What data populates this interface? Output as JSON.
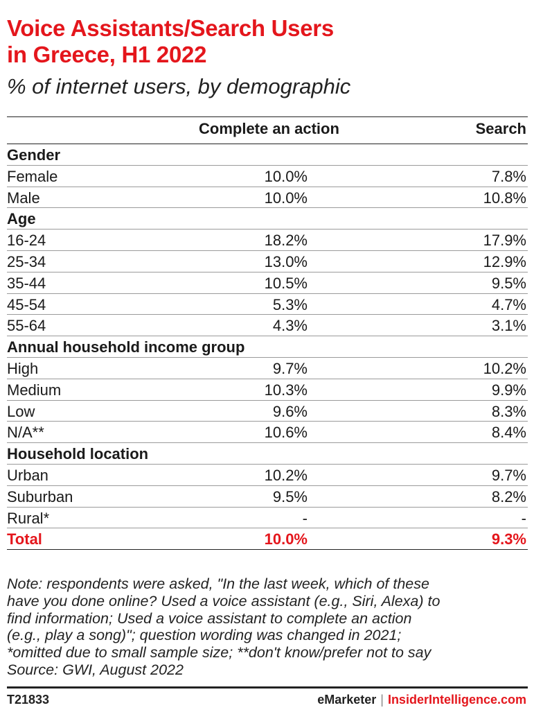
{
  "title_lines": [
    "Voice Assistants/Search Users",
    "in Greece, H1 2022"
  ],
  "subtitle": "% of internet users, by demographic",
  "chart_data": {
    "type": "table",
    "columns": [
      "",
      "Complete an action",
      "Search"
    ],
    "rows": [
      {
        "label": "Gender",
        "group": true
      },
      {
        "label": "Female",
        "complete": "10.0%",
        "search": "7.8%"
      },
      {
        "label": "Male",
        "complete": "10.0%",
        "search": "10.8%"
      },
      {
        "label": "Age",
        "group": true
      },
      {
        "label": "16-24",
        "complete": "18.2%",
        "search": "17.9%"
      },
      {
        "label": "25-34",
        "complete": "13.0%",
        "search": "12.9%"
      },
      {
        "label": "35-44",
        "complete": "10.5%",
        "search": "9.5%"
      },
      {
        "label": "45-54",
        "complete": "5.3%",
        "search": "4.7%"
      },
      {
        "label": "55-64",
        "complete": "4.3%",
        "search": "3.1%"
      },
      {
        "label": "Annual household income group",
        "group": true
      },
      {
        "label": "High",
        "complete": "9.7%",
        "search": "10.2%"
      },
      {
        "label": "Medium",
        "complete": "10.3%",
        "search": "9.9%"
      },
      {
        "label": "Low",
        "complete": "9.6%",
        "search": "8.3%"
      },
      {
        "label": "N/A**",
        "complete": "10.6%",
        "search": "8.4%"
      },
      {
        "label": "Household location",
        "group": true
      },
      {
        "label": "Urban",
        "complete": "10.2%",
        "search": "9.7%"
      },
      {
        "label": "Suburban",
        "complete": "9.5%",
        "search": "8.2%"
      },
      {
        "label": "Rural*",
        "complete": "-",
        "search": "-"
      },
      {
        "label": "Total",
        "complete": "10.0%",
        "search": "9.3%",
        "total": true
      }
    ]
  },
  "notes": [
    "Note: respondents were asked, \"In the last week, which of these",
    "have you done online? Used a voice assistant (e.g., Siri, Alexa) to",
    "find information; Used a voice assistant to complete an action",
    "(e.g., play a song)\"; question wording was changed in 2021;",
    "*omitted due to small sample size; **don't know/prefer not to say",
    "Source: GWI, August 2022"
  ],
  "footer": {
    "code": "T21833",
    "brand_emarketer": "eMarketer",
    "brand_separator": "|",
    "brand_insider": "InsiderIntelligence.com"
  },
  "colors": {
    "accent": "#e4161c",
    "text": "#1a1a1a"
  }
}
